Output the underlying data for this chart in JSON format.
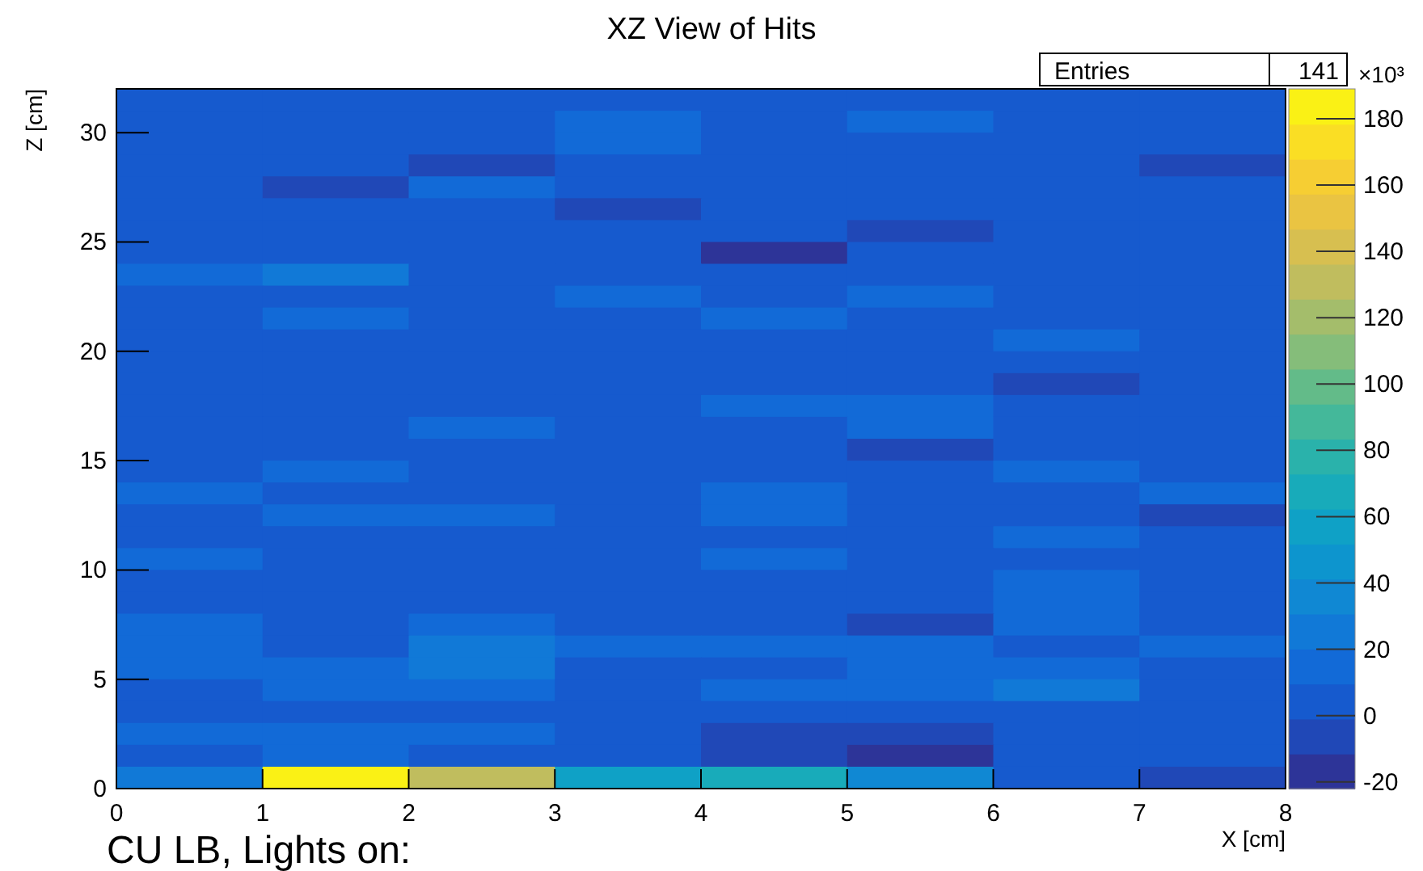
{
  "chart_data": {
    "type": "heatmap",
    "title": "XZ View of Hits",
    "xlabel": "X [cm]",
    "ylabel": "Z [cm]",
    "clabel": "×10³",
    "xlim": [
      0,
      8
    ],
    "xticks": [
      0,
      1,
      2,
      3,
      4,
      5,
      6,
      7,
      8
    ],
    "ylim": [
      0,
      32
    ],
    "yticks": [
      0,
      5,
      10,
      15,
      20,
      25,
      30
    ],
    "clim": [
      -22,
      189
    ],
    "cticks": [
      -20,
      0,
      20,
      40,
      60,
      80,
      100,
      120,
      140,
      160,
      180
    ],
    "cells": [
      [
        3,
        3,
        3,
        3,
        3,
        3,
        3,
        3
      ],
      [
        3,
        3,
        3,
        14,
        3,
        14,
        3,
        3
      ],
      [
        3,
        3,
        3,
        14,
        3,
        3,
        3,
        3
      ],
      [
        3,
        3,
        -7,
        3,
        3,
        3,
        3,
        -7
      ],
      [
        3,
        -7,
        14,
        3,
        3,
        3,
        3,
        3
      ],
      [
        3,
        3,
        3,
        -7,
        3,
        3,
        3,
        3
      ],
      [
        3,
        3,
        3,
        3,
        3,
        -7,
        3,
        3
      ],
      [
        3,
        3,
        3,
        3,
        -17,
        3,
        3,
        3
      ],
      [
        14,
        25,
        3,
        3,
        3,
        3,
        3,
        3
      ],
      [
        3,
        3,
        3,
        14,
        3,
        14,
        3,
        3
      ],
      [
        3,
        14,
        3,
        3,
        14,
        3,
        3,
        3
      ],
      [
        3,
        3,
        3,
        3,
        3,
        3,
        14,
        3
      ],
      [
        3,
        3,
        3,
        3,
        3,
        3,
        3,
        3
      ],
      [
        3,
        3,
        3,
        3,
        3,
        3,
        -7,
        3
      ],
      [
        3,
        3,
        3,
        3,
        14,
        14,
        3,
        3
      ],
      [
        3,
        3,
        14,
        3,
        3,
        14,
        3,
        3
      ],
      [
        3,
        3,
        3,
        3,
        3,
        -7,
        3,
        3
      ],
      [
        3,
        14,
        3,
        3,
        3,
        3,
        14,
        3
      ],
      [
        14,
        3,
        3,
        3,
        14,
        3,
        3,
        14
      ],
      [
        3,
        14,
        14,
        3,
        14,
        3,
        3,
        -7
      ],
      [
        3,
        3,
        3,
        3,
        3,
        3,
        14,
        3
      ],
      [
        14,
        3,
        3,
        3,
        14,
        3,
        3,
        3
      ],
      [
        3,
        3,
        3,
        3,
        3,
        3,
        14,
        3
      ],
      [
        3,
        3,
        3,
        3,
        3,
        3,
        14,
        3
      ],
      [
        14,
        3,
        14,
        3,
        3,
        -7,
        14,
        3
      ],
      [
        14,
        3,
        25,
        14,
        14,
        14,
        3,
        14
      ],
      [
        14,
        14,
        25,
        3,
        3,
        14,
        14,
        3
      ],
      [
        3,
        14,
        14,
        3,
        14,
        14,
        25,
        3
      ],
      [
        3,
        3,
        3,
        3,
        3,
        3,
        3,
        3
      ],
      [
        14,
        14,
        14,
        3,
        -7,
        -7,
        3,
        3
      ],
      [
        3,
        14,
        3,
        3,
        -7,
        -17,
        3,
        3
      ],
      [
        25,
        185,
        135,
        55,
        68,
        35,
        3,
        -7
      ]
    ],
    "annotations": [
      "Entries",
      "141",
      "CU LB, Lights on:"
    ]
  }
}
